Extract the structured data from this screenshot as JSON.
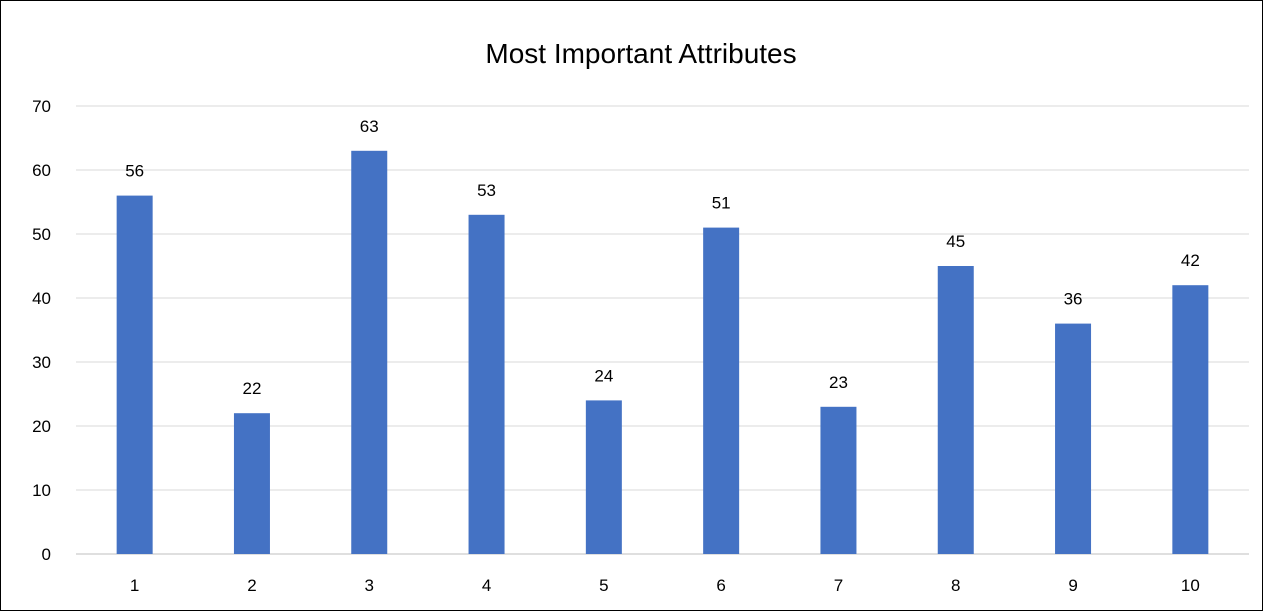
{
  "chart_data": {
    "type": "bar",
    "title": "Most Important Attributes",
    "xlabel": "",
    "ylabel": "",
    "categories": [
      "1",
      "2",
      "3",
      "4",
      "5",
      "6",
      "7",
      "8",
      "9",
      "10"
    ],
    "values": [
      56,
      22,
      63,
      53,
      24,
      51,
      23,
      45,
      36,
      42
    ],
    "ylim": [
      0,
      70
    ],
    "yticks": [
      0,
      10,
      20,
      30,
      40,
      50,
      60,
      70
    ],
    "grid": true,
    "legend": "none",
    "data_labels": true,
    "bar_color": "#4472c4"
  }
}
